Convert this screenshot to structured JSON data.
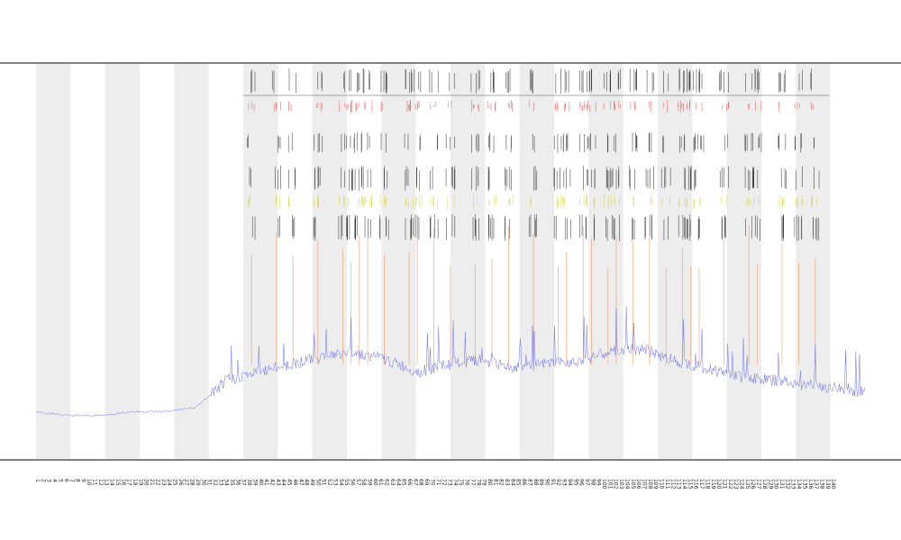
{
  "chart_data": {
    "type": "line",
    "title": "",
    "subtitle_lines": [],
    "xlabel": "",
    "ylabel": "",
    "grid": false,
    "x_range": [
      0,
      1
    ],
    "y_range": [
      0,
      1
    ],
    "colors": {
      "line": "#6b6ff0",
      "band": "#ededed",
      "track_black": "#111111",
      "track_red": "#e2403a",
      "track_yellow": "#d6cf2a",
      "track_orange": "#ef7a2a",
      "axis": "#000000"
    },
    "band_count": 12,
    "legend_items": [],
    "series": [
      {
        "name": "",
        "summary": "dense noisy baseline trace: low and flat on the left third, stepping up and fluctuating with spikes across the remaining span",
        "baseline": [
          0.12,
          0.11,
          0.11,
          0.12,
          0.12,
          0.13,
          0.2,
          0.22,
          0.24,
          0.26,
          0.27,
          0.25,
          0.22,
          0.24,
          0.25,
          0.23,
          0.24,
          0.25,
          0.27,
          0.28,
          0.25,
          0.23,
          0.21,
          0.2,
          0.19,
          0.18,
          0.17
        ]
      }
    ],
    "event_positions": [
      0.26,
      0.29,
      0.31,
      0.34,
      0.37,
      0.38,
      0.39,
      0.4,
      0.42,
      0.45,
      0.46,
      0.48,
      0.5,
      0.53,
      0.55,
      0.57,
      0.6,
      0.63,
      0.64,
      0.66,
      0.67,
      0.69,
      0.7,
      0.72,
      0.74,
      0.76,
      0.78,
      0.79,
      0.8,
      0.83,
      0.86,
      0.87,
      0.9,
      0.92,
      0.94
    ]
  }
}
